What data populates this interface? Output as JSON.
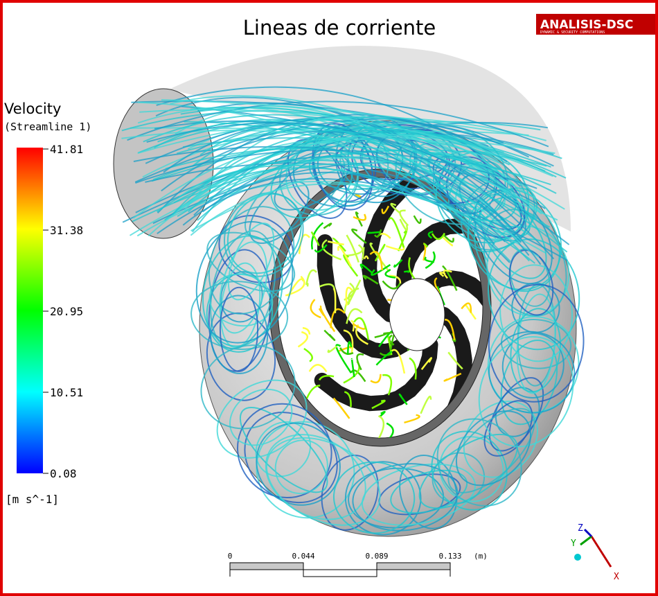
{
  "title": "Lineas de corriente",
  "logo": {
    "name": "ANALISIS-DSC",
    "tagline": "DYNAMIC & SECURITY COMPUTATIONS"
  },
  "legend": {
    "variable": "Velocity",
    "source": "(Streamline 1)",
    "ticks": [
      "41.81",
      "31.38",
      "20.95",
      "10.51",
      "0.08"
    ],
    "unit": "[m s^-1]"
  },
  "scale_bar": {
    "ticks": [
      "0",
      "0.044",
      "0.089",
      "0.133"
    ],
    "unit": "(m)"
  },
  "axes": {
    "z": "Z",
    "y": "Y",
    "x": "X"
  }
}
